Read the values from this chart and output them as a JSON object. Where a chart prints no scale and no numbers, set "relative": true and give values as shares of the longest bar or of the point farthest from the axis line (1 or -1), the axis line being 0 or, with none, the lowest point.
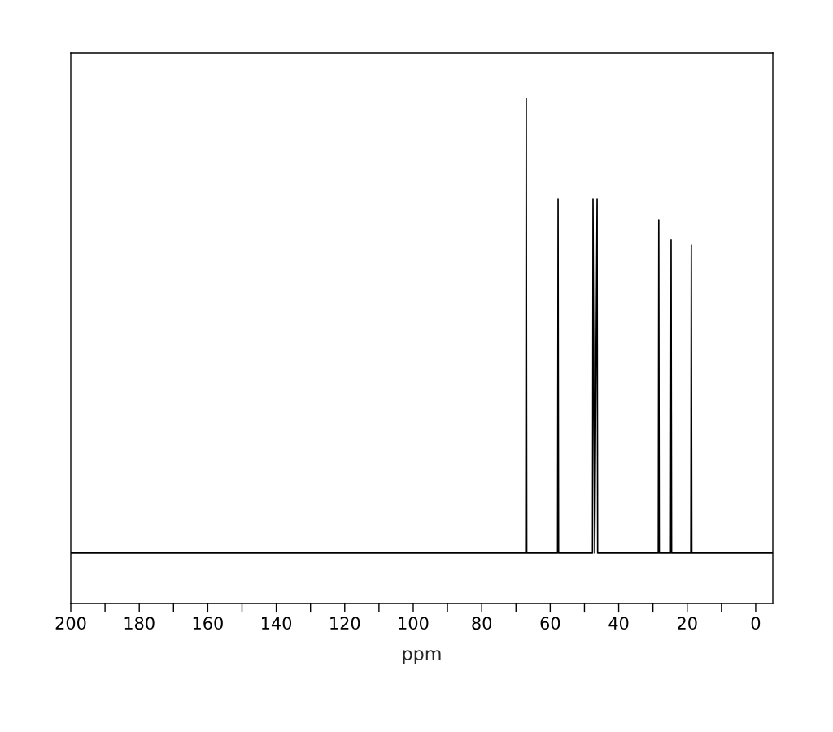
{
  "chart_data": {
    "type": "line",
    "xlabel": "ppm",
    "relative": true,
    "color": "#000000",
    "xlim": [
      200,
      -5
    ],
    "xticks": [
      200,
      {
        "value": 190,
        "label": null
      },
      180,
      {
        "value": 170,
        "label": null
      },
      160,
      {
        "value": 150,
        "label": null
      },
      140,
      {
        "value": 130,
        "label": null
      },
      120,
      {
        "value": 110,
        "label": null
      },
      100,
      {
        "value": 90,
        "label": null
      },
      80,
      {
        "value": 70,
        "label": null
      },
      60,
      {
        "value": 50,
        "label": null
      },
      40,
      {
        "value": 30,
        "label": null
      },
      20,
      {
        "value": 10,
        "label": null
      },
      0
    ],
    "x": [
      200,
      67.15,
      67.0,
      66.85,
      57.85,
      57.7,
      57.55,
      47.65,
      47.5,
      47.0,
      46.3,
      46.15,
      28.45,
      28.3,
      28.15,
      24.85,
      24.7,
      24.55,
      18.95,
      18.8,
      18.65,
      -5
    ],
    "values": [
      0.1,
      0.1,
      1.0,
      0.1,
      0.1,
      0.8,
      0.1,
      0.1,
      0.8,
      0.1,
      0.8,
      0.1,
      0.1,
      0.76,
      0.1,
      0.1,
      0.72,
      0.1,
      0.1,
      0.71,
      0.1,
      0.1
    ],
    "grid": false,
    "marker": "none",
    "line_style": "solid"
  }
}
